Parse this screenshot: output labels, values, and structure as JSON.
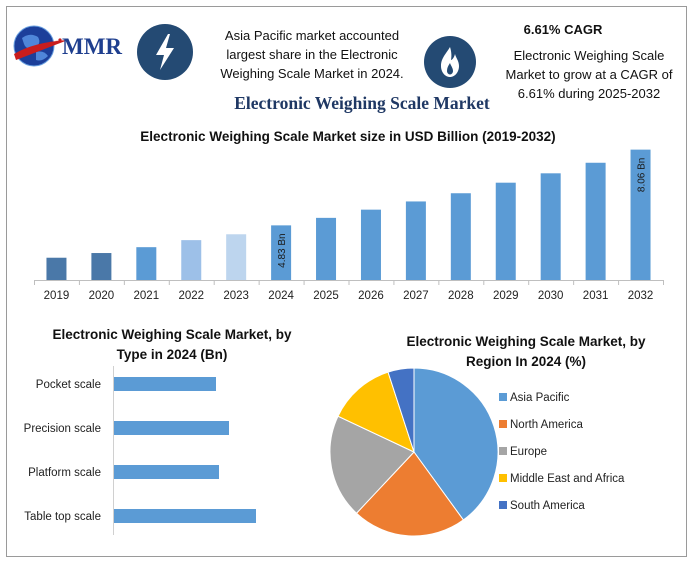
{
  "logo": {
    "text": "MMR"
  },
  "header": {
    "note_left": "Asia Pacific market accounted largest share in the Electronic Weighing Scale Market in 2024.",
    "cagr_title": "6.61% CAGR",
    "note_right": "Electronic Weighing Scale Market to grow at a CAGR of 6.61% during 2025-2032"
  },
  "icons": {
    "left": "lightning-bolt-icon",
    "right": "flame-icon",
    "logo": "globe-icon"
  },
  "main_title": "Electronic Weighing Scale Market",
  "colors": {
    "bar_dark": "#4a78a8",
    "bar_mid": "#5b9bd5",
    "bar_light": "#9dc0e8",
    "bar_lighter": "#bdd5ee",
    "badge": "#244a73",
    "title": "#1f3864"
  },
  "chart_data": [
    {
      "type": "bar",
      "title": "Electronic Weighing Scale Market size in USD Billion (2019-2032)",
      "categories": [
        "2019",
        "2020",
        "2021",
        "2022",
        "2023",
        "2024",
        "2025",
        "2026",
        "2027",
        "2028",
        "2029",
        "2030",
        "2031",
        "2032"
      ],
      "values": [
        3.45,
        3.65,
        3.9,
        4.2,
        4.45,
        4.83,
        5.15,
        5.5,
        5.85,
        6.2,
        6.65,
        7.05,
        7.5,
        8.06
      ],
      "data_labels": {
        "2024": "4.83 Bn",
        "2032": "8.06 Bn"
      },
      "bar_colors": [
        "#4a78a8",
        "#4a78a8",
        "#5b9bd5",
        "#9dc0e8",
        "#bdd5ee",
        "#5b9bd5",
        "#5b9bd5",
        "#5b9bd5",
        "#5b9bd5",
        "#5b9bd5",
        "#5b9bd5",
        "#5b9bd5",
        "#5b9bd5",
        "#5b9bd5"
      ],
      "ylim": [
        2.5,
        8.3
      ],
      "grid": false
    },
    {
      "type": "bar",
      "orientation": "horizontal",
      "title": "Electronic Weighing Scale Market, by Type in 2024 (Bn)",
      "categories": [
        "Pocket scale",
        "Precision scale",
        "Platform scale",
        "Table top scale"
      ],
      "values": [
        1.02,
        1.15,
        1.05,
        1.42
      ],
      "xlim": [
        0,
        1.6
      ],
      "color": "#5b9bd5"
    },
    {
      "type": "pie",
      "title": "Electronic Weighing Scale Market, by Region In 2024 (%)",
      "labels": [
        "Asia Pacific",
        "North America",
        "Europe",
        "Middle East and Africa",
        "South America"
      ],
      "values": [
        40,
        22,
        20,
        13,
        5
      ],
      "colors": [
        "#5b9bd5",
        "#ed7d31",
        "#a5a5a5",
        "#ffc000",
        "#4472c4"
      ],
      "legend": "right"
    }
  ]
}
